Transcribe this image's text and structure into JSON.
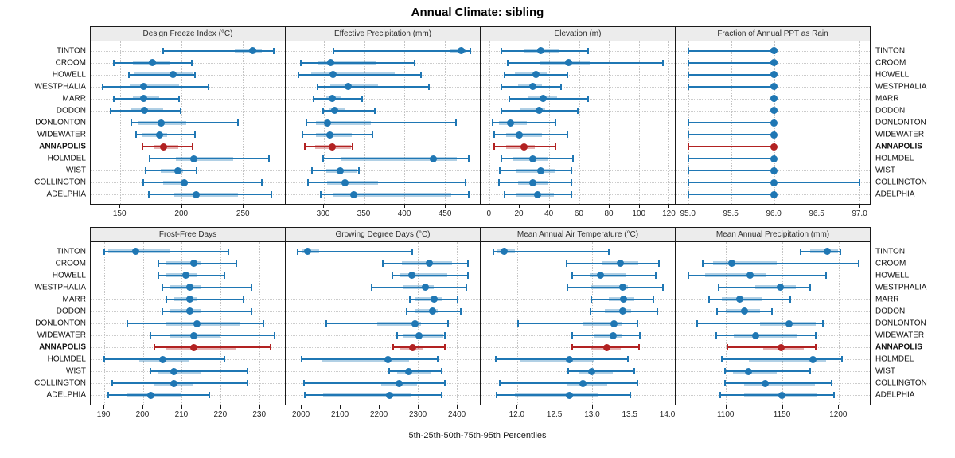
{
  "title": "Annual Climate: sibling",
  "caption": "5th-25th-50th-75th-95th Percentiles",
  "colors": {
    "series_blue": "#1f77b4",
    "series_blue_band": "rgba(31,119,180,0.35)",
    "highlight_red": "#b22222",
    "highlight_red_band": "rgba(178,34,34,0.35)",
    "strip_bg": "#ececec",
    "grid": "#c4c4c4",
    "border": "#1a1a1a"
  },
  "chart_data": {
    "type": "scatter",
    "variant": "percentile-dot-whisker",
    "percentiles": [
      5,
      25,
      50,
      75,
      95
    ],
    "categories": [
      "TINTON",
      "CROOM",
      "HOWELL",
      "WESTPHALIA",
      "MARR",
      "DODON",
      "DONLONTON",
      "WIDEWATER",
      "ANNAPOLIS",
      "HOLMDEL",
      "WIST",
      "COLLINGTON",
      "ADELPHIA"
    ],
    "highlight_category": "ANNAPOLIS",
    "row_labels_both_sides": true,
    "grid": "dotted",
    "panels": [
      {
        "title": "Design Freeze Index (°C)",
        "xlim": [
          126,
          284
        ],
        "ticks": [
          150,
          200,
          250
        ],
        "tick_labels": [
          "150",
          "200",
          "250"
        ],
        "values": [
          [
            185,
            243,
            258,
            265,
            275
          ],
          [
            145,
            160,
            176,
            190,
            208
          ],
          [
            157,
            161,
            193,
            209,
            211
          ],
          [
            136,
            158,
            169,
            198,
            222
          ],
          [
            145,
            160,
            169,
            182,
            198
          ],
          [
            142,
            159,
            170,
            185,
            199
          ],
          [
            159,
            164,
            183,
            204,
            246
          ],
          [
            163,
            168,
            182,
            188,
            211
          ],
          [
            168,
            178,
            185,
            197,
            209
          ],
          [
            174,
            195,
            210,
            242,
            271
          ],
          [
            171,
            183,
            197,
            201,
            212
          ],
          [
            169,
            185,
            202,
            205,
            265
          ],
          [
            173,
            194,
            212,
            246,
            273
          ]
        ]
      },
      {
        "title": "Effective Precipitation (mm)",
        "xlim": [
          253,
          493
        ],
        "ticks": [
          300,
          350,
          400,
          450
        ],
        "tick_labels": [
          "300",
          "350",
          "400",
          "450"
        ],
        "values": [
          [
            312,
            456,
            470,
            476,
            481
          ],
          [
            272,
            293,
            309,
            365,
            412
          ],
          [
            269,
            284,
            312,
            388,
            420
          ],
          [
            292,
            308,
            330,
            367,
            430
          ],
          [
            287,
            303,
            311,
            322,
            347
          ],
          [
            299,
            306,
            313,
            326,
            363
          ],
          [
            279,
            290,
            305,
            358,
            463
          ],
          [
            274,
            290,
            308,
            335,
            360
          ],
          [
            277,
            289,
            311,
            334,
            336
          ],
          [
            299,
            321,
            435,
            464,
            479
          ],
          [
            285,
            303,
            320,
            342,
            343
          ],
          [
            281,
            304,
            326,
            367,
            475
          ],
          [
            296,
            311,
            337,
            458,
            479
          ]
        ]
      },
      {
        "title": "Elevation (m)",
        "xlim": [
          -6,
          124
        ],
        "ticks": [
          0,
          20,
          40,
          60,
          80,
          100,
          120
        ],
        "tick_labels": [
          "0",
          "20",
          "40",
          "60",
          "80",
          "100",
          "120"
        ],
        "values": [
          [
            8,
            23,
            34,
            46,
            66
          ],
          [
            12,
            34,
            53,
            67,
            116
          ],
          [
            10,
            17,
            31,
            38,
            52
          ],
          [
            8,
            19,
            29,
            35,
            48
          ],
          [
            13,
            26,
            36,
            45,
            66
          ],
          [
            8,
            20,
            33,
            37,
            59
          ],
          [
            2,
            6,
            14,
            25,
            44
          ],
          [
            3,
            11,
            20,
            35,
            52
          ],
          [
            3,
            11,
            23,
            30,
            44
          ],
          [
            8,
            16,
            29,
            39,
            56
          ],
          [
            7,
            18,
            34,
            44,
            55
          ],
          [
            6,
            19,
            29,
            39,
            55
          ],
          [
            10,
            18,
            32,
            43,
            55
          ]
        ]
      },
      {
        "title": "Fraction of Annual PPT as Rain",
        "xlim": [
          94.85,
          97.12
        ],
        "ticks": [
          95.0,
          95.5,
          96.0,
          96.5,
          97.0
        ],
        "tick_labels": [
          "95.0",
          "95.5",
          "96.0",
          "96.5",
          "97.0"
        ],
        "values": [
          [
            95,
            96,
            96,
            96,
            96
          ],
          [
            95,
            96,
            96,
            96,
            96
          ],
          [
            95,
            96,
            96,
            96,
            96
          ],
          [
            95,
            96,
            96,
            96,
            96
          ],
          [
            96,
            96,
            96,
            96,
            96
          ],
          [
            96,
            96,
            96,
            96,
            96
          ],
          [
            95,
            96,
            96,
            96,
            96
          ],
          [
            95,
            96,
            96,
            96,
            96
          ],
          [
            95,
            96,
            96,
            96,
            96
          ],
          [
            95,
            96,
            96,
            96,
            96
          ],
          [
            95,
            96,
            96,
            96,
            96
          ],
          [
            95,
            96,
            96,
            96,
            97
          ],
          [
            95,
            96,
            96,
            96,
            96
          ]
        ]
      },
      {
        "title": "Frost-Free Days",
        "xlim": [
          186.5,
          236.6
        ],
        "ticks": [
          190,
          200,
          210,
          220,
          230
        ],
        "tick_labels": [
          "190",
          "200",
          "210",
          "220",
          "230"
        ],
        "values": [
          [
            190,
            191,
            198,
            207,
            222
          ],
          [
            204,
            206,
            213,
            215,
            224
          ],
          [
            204,
            206,
            211,
            214,
            221
          ],
          [
            205,
            207,
            212,
            215,
            228
          ],
          [
            206,
            208,
            212,
            214,
            226
          ],
          [
            205,
            207,
            212,
            215,
            228
          ],
          [
            196,
            206,
            214,
            225,
            231
          ],
          [
            202,
            207,
            213,
            220,
            234
          ],
          [
            203,
            206,
            213,
            224,
            233
          ],
          [
            190,
            199,
            205,
            212,
            221
          ],
          [
            202,
            204,
            208,
            215,
            227
          ],
          [
            192,
            203,
            208,
            213,
            227
          ],
          [
            191,
            196,
            202,
            210,
            217
          ]
        ]
      },
      {
        "title": "Growing Degree Days (°C)",
        "xlim": [
          1959,
          2459
        ],
        "ticks": [
          2000,
          2100,
          2200,
          2300,
          2400
        ],
        "tick_labels": [
          "2000",
          "2100",
          "2200",
          "2300",
          "2400"
        ],
        "values": [
          [
            1990,
            2001,
            2016,
            2045,
            2285
          ],
          [
            2210,
            2259,
            2329,
            2388,
            2429
          ],
          [
            2234,
            2252,
            2283,
            2375,
            2429
          ],
          [
            2180,
            2263,
            2318,
            2340,
            2424
          ],
          [
            2278,
            2293,
            2341,
            2361,
            2402
          ],
          [
            2271,
            2290,
            2337,
            2351,
            2410
          ],
          [
            2064,
            2195,
            2293,
            2307,
            2378
          ],
          [
            2246,
            2263,
            2302,
            2365,
            2368
          ],
          [
            2235,
            2252,
            2285,
            2314,
            2368
          ],
          [
            1999,
            2052,
            2223,
            2276,
            2351
          ],
          [
            2225,
            2246,
            2275,
            2331,
            2361
          ],
          [
            2006,
            2205,
            2252,
            2297,
            2368
          ],
          [
            2008,
            2055,
            2227,
            2283,
            2361
          ]
        ]
      },
      {
        "title": "Mean Annual Air Temperature (°C)",
        "xlim": [
          11.51,
          14.1
        ],
        "ticks": [
          12.0,
          12.5,
          13.0,
          13.5,
          14.0
        ],
        "tick_labels": [
          "12.0",
          "12.5",
          "13.0",
          "13.5",
          "14.0"
        ],
        "values": [
          [
            11.68,
            11.73,
            11.82,
            11.97,
            13.22
          ],
          [
            12.66,
            13.12,
            13.37,
            13.61,
            13.89
          ],
          [
            12.73,
            12.96,
            13.11,
            13.45,
            13.84
          ],
          [
            12.67,
            12.99,
            13.4,
            13.47,
            13.94
          ],
          [
            12.99,
            13.22,
            13.42,
            13.56,
            13.81
          ],
          [
            12.98,
            13.17,
            13.4,
            13.52,
            13.87
          ],
          [
            12.01,
            12.87,
            13.29,
            13.4,
            13.6
          ],
          [
            12.73,
            13.03,
            13.28,
            13.4,
            13.63
          ],
          [
            12.73,
            12.98,
            13.19,
            13.38,
            13.62
          ],
          [
            11.71,
            12.03,
            12.69,
            13.03,
            13.47
          ],
          [
            12.68,
            12.83,
            12.99,
            13.27,
            13.56
          ],
          [
            11.77,
            12.66,
            12.87,
            13.2,
            13.6
          ],
          [
            11.72,
            11.97,
            12.69,
            13.08,
            13.51
          ]
        ]
      },
      {
        "title": "Mean Annual Precipitation (mm)",
        "xlim": [
          1055,
          1228
        ],
        "ticks": [
          1100,
          1150,
          1200
        ],
        "tick_labels": [
          "1100",
          "1150",
          "1200"
        ],
        "values": [
          [
            1166,
            1175,
            1190,
            1200,
            1202
          ],
          [
            1079,
            1088,
            1105,
            1145,
            1218
          ],
          [
            1066,
            1081,
            1121,
            1135,
            1189
          ],
          [
            1093,
            1126,
            1148,
            1162,
            1175
          ],
          [
            1085,
            1096,
            1112,
            1132,
            1157
          ],
          [
            1092,
            1100,
            1116,
            1130,
            1141
          ],
          [
            1074,
            1130,
            1156,
            1180,
            1186
          ],
          [
            1091,
            1107,
            1126,
            1163,
            1180
          ],
          [
            1101,
            1133,
            1149,
            1169,
            1180
          ],
          [
            1096,
            1120,
            1177,
            1189,
            1203
          ],
          [
            1099,
            1106,
            1120,
            1145,
            1175
          ],
          [
            1099,
            1116,
            1135,
            1179,
            1194
          ],
          [
            1095,
            1116,
            1150,
            1181,
            1196
          ]
        ]
      }
    ]
  }
}
